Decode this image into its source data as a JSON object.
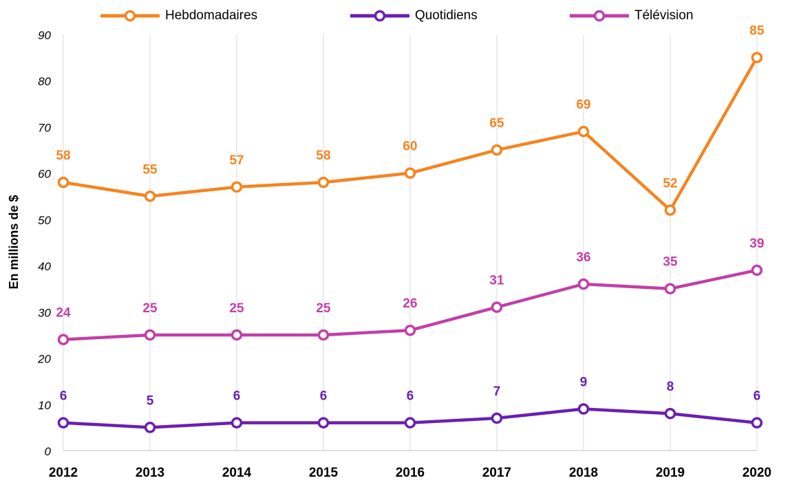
{
  "chart_data": {
    "type": "line",
    "categories": [
      "2012",
      "2013",
      "2014",
      "2015",
      "2016",
      "2017",
      "2018",
      "2019",
      "2020"
    ],
    "series": [
      {
        "name": "Hebdomadaires",
        "color": "#f5841f",
        "values": [
          58,
          55,
          57,
          58,
          60,
          65,
          69,
          52,
          85
        ]
      },
      {
        "name": "Quotidiens",
        "color": "#6a1fb1",
        "values": [
          6,
          5,
          6,
          6,
          6,
          7,
          9,
          8,
          6
        ]
      },
      {
        "name": "Télévision",
        "color": "#c23fa8",
        "values": [
          24,
          25,
          25,
          25,
          26,
          31,
          36,
          35,
          39
        ]
      }
    ],
    "ylabel": "En millions de $",
    "xlabel": "",
    "ylim": [
      0,
      90
    ],
    "yticks": [
      "0",
      "10",
      "20",
      "30",
      "40",
      "50",
      "60",
      "70",
      "80",
      "90"
    ],
    "grid": "vertical",
    "legend_position": "top",
    "marker": "open-circle",
    "data_labels": true
  }
}
